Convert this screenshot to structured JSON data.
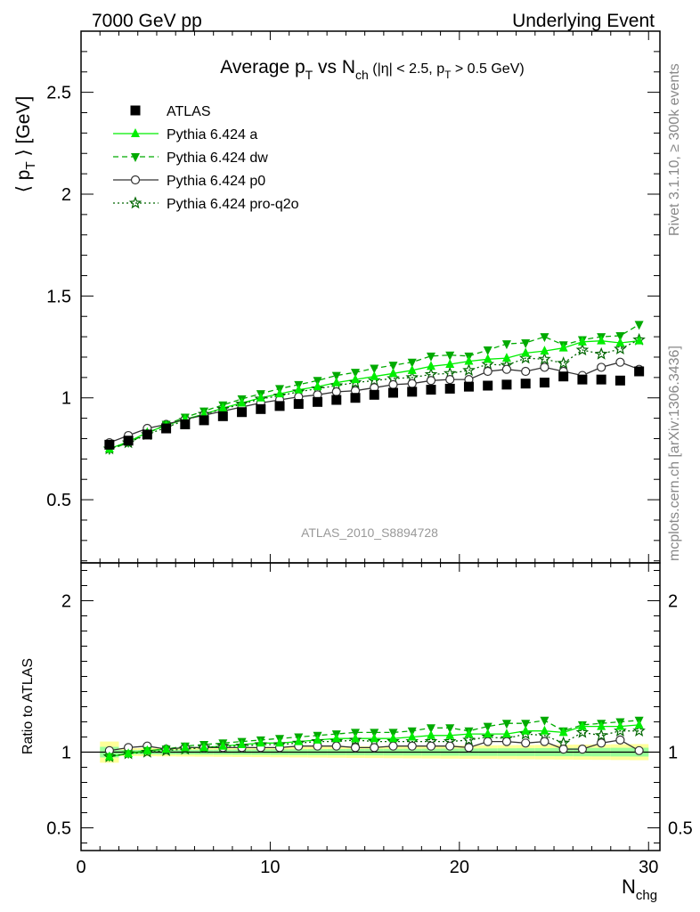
{
  "header": {
    "left": "7000 GeV pp",
    "right": "Underlying Event"
  },
  "side": {
    "rivet": "Rivet 3.1.10, ≥ 300k events",
    "mcplots": "mcplots.cern.ch [arXiv:1306.3436]"
  },
  "chart_data": {
    "type": "scatter",
    "title": "Average p_T vs N_ch (|η| < 2.5, p_T > 0.5 GeV)",
    "title_main": "Average p",
    "title_sub_T": "T",
    "title_vs": " vs N",
    "title_sub_ch": "ch",
    "title_rest": " (|η| < 2.5, p",
    "title_sub_T2": "T",
    "title_end": " > 0.5 GeV)",
    "analysis_label": "ATLAS_2010_S8894728",
    "xlabel": "N",
    "xlabel_sub": "chg",
    "ylabel": "⟨ p_T ⟩ [GeV]",
    "ylabel_pre": "⟨ p",
    "ylabel_sub": "T",
    "ylabel_post": " ⟩ [GeV]",
    "ratio_ylabel": "Ratio to ATLAS",
    "xlim": [
      0,
      30.6
    ],
    "ylim": [
      0.19,
      2.8
    ],
    "ratio_ylim": [
      0.35,
      2.25
    ],
    "x_ticks": [
      "0",
      "10",
      "20",
      "30"
    ],
    "y_ticks": [
      "0.5",
      "1",
      "1.5",
      "2",
      "2.5"
    ],
    "ratio_ticks": [
      "0.5",
      "1",
      "2"
    ],
    "legend_position": "top-left",
    "x": [
      1.5,
      2.5,
      3.5,
      4.5,
      5.5,
      6.5,
      7.5,
      8.5,
      9.5,
      10.5,
      11.5,
      12.5,
      13.5,
      14.5,
      15.5,
      16.5,
      17.5,
      18.5,
      19.5,
      20.5,
      21.5,
      22.5,
      23.5,
      24.5,
      25.5,
      26.5,
      27.5,
      28.5,
      29.5
    ],
    "series": [
      {
        "name": "ATLAS",
        "color": "#000000",
        "values": [
          0.77,
          0.79,
          0.82,
          0.85,
          0.87,
          0.89,
          0.91,
          0.93,
          0.945,
          0.96,
          0.97,
          0.98,
          0.99,
          1.0,
          1.015,
          1.025,
          1.03,
          1.04,
          1.045,
          1.055,
          1.06,
          1.065,
          1.07,
          1.075,
          1.105,
          1.09,
          1.09,
          1.085,
          1.13
        ]
      },
      {
        "name": "Pythia 6.424 a",
        "color": "#00ee00",
        "values": [
          0.75,
          0.785,
          0.83,
          0.865,
          0.895,
          0.92,
          0.95,
          0.975,
          1.0,
          1.02,
          1.04,
          1.055,
          1.075,
          1.09,
          1.105,
          1.12,
          1.135,
          1.155,
          1.165,
          1.18,
          1.19,
          1.195,
          1.22,
          1.23,
          1.245,
          1.275,
          1.28,
          1.27,
          1.28
        ]
      },
      {
        "name": "Pythia 6.424 dw",
        "color": "#00aa00",
        "values": [
          0.745,
          0.78,
          0.825,
          0.87,
          0.905,
          0.935,
          0.965,
          0.995,
          1.02,
          1.045,
          1.065,
          1.085,
          1.11,
          1.125,
          1.145,
          1.16,
          1.175,
          1.205,
          1.21,
          1.205,
          1.235,
          1.265,
          1.27,
          1.3,
          1.26,
          1.285,
          1.3,
          1.305,
          1.36
        ]
      },
      {
        "name": "Pythia 6.424 p0",
        "color": "#333333",
        "values": [
          0.78,
          0.815,
          0.85,
          0.87,
          0.895,
          0.915,
          0.935,
          0.955,
          0.975,
          0.99,
          1.005,
          1.015,
          1.03,
          1.035,
          1.05,
          1.065,
          1.07,
          1.085,
          1.09,
          1.09,
          1.13,
          1.14,
          1.13,
          1.15,
          1.13,
          1.11,
          1.15,
          1.175,
          1.14
        ]
      },
      {
        "name": "Pythia 6.424 pro-q2o",
        "color": "#006600",
        "values": [
          0.75,
          0.78,
          0.82,
          0.855,
          0.89,
          0.92,
          0.945,
          0.97,
          0.995,
          1.01,
          1.03,
          1.045,
          1.06,
          1.075,
          1.085,
          1.095,
          1.1,
          1.115,
          1.12,
          1.135,
          1.165,
          1.16,
          1.195,
          1.19,
          1.17,
          1.235,
          1.215,
          1.24,
          1.285
        ]
      }
    ],
    "ratio_series": [
      {
        "name": "Pythia 6.424 a",
        "values": [
          0.97,
          0.99,
          1.01,
          1.02,
          1.03,
          1.03,
          1.04,
          1.05,
          1.06,
          1.06,
          1.07,
          1.08,
          1.09,
          1.09,
          1.09,
          1.09,
          1.1,
          1.11,
          1.11,
          1.12,
          1.12,
          1.12,
          1.14,
          1.14,
          1.13,
          1.17,
          1.17,
          1.17,
          1.18
        ]
      },
      {
        "name": "Pythia 6.424 dw",
        "values": [
          0.97,
          0.99,
          1.01,
          1.02,
          1.04,
          1.05,
          1.06,
          1.07,
          1.08,
          1.09,
          1.1,
          1.11,
          1.12,
          1.13,
          1.13,
          1.13,
          1.14,
          1.16,
          1.16,
          1.14,
          1.17,
          1.19,
          1.19,
          1.21,
          1.14,
          1.18,
          1.19,
          1.2,
          1.21
        ]
      },
      {
        "name": "Pythia 6.424 p0",
        "values": [
          1.01,
          1.03,
          1.04,
          1.02,
          1.03,
          1.03,
          1.03,
          1.03,
          1.03,
          1.03,
          1.04,
          1.04,
          1.04,
          1.03,
          1.03,
          1.04,
          1.04,
          1.04,
          1.04,
          1.03,
          1.07,
          1.07,
          1.06,
          1.07,
          1.02,
          1.02,
          1.06,
          1.08,
          1.01
        ]
      },
      {
        "name": "Pythia 6.424 pro-q2o",
        "values": [
          0.97,
          0.99,
          1.0,
          1.01,
          1.02,
          1.03,
          1.04,
          1.04,
          1.05,
          1.05,
          1.06,
          1.07,
          1.07,
          1.08,
          1.07,
          1.07,
          1.07,
          1.07,
          1.07,
          1.08,
          1.1,
          1.09,
          1.12,
          1.11,
          1.06,
          1.13,
          1.11,
          1.14,
          1.14
        ]
      }
    ]
  }
}
